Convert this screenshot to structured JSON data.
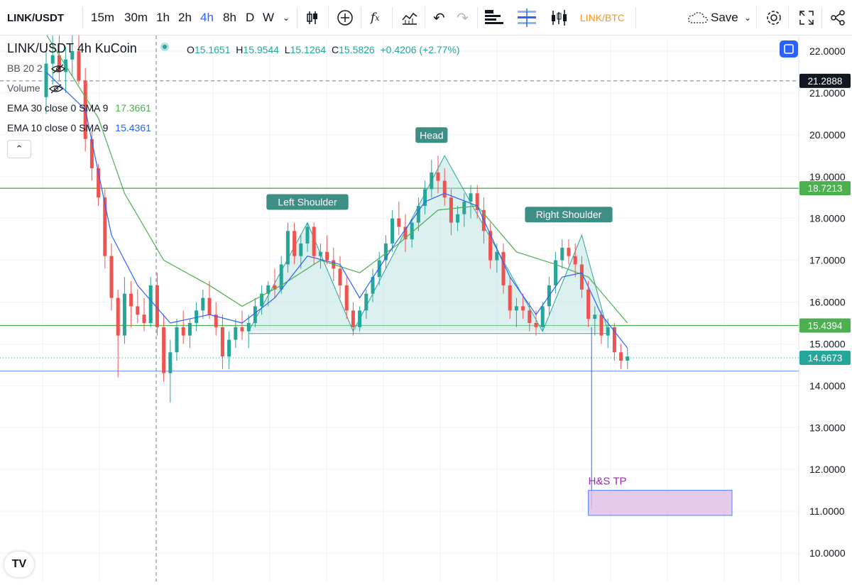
{
  "toolbar": {
    "symbol": "LINK/USDT",
    "intervals": [
      "15m",
      "30m",
      "1h",
      "2h",
      "4h",
      "8h",
      "D",
      "W"
    ],
    "active_interval": "4h",
    "compare_label": "LINK/BTC",
    "save_label": "Save",
    "icons": [
      "chevron-down-icon",
      "candles-icon",
      "plus-circle-icon",
      "indicator-fx-icon",
      "templates-icon",
      "undo-icon",
      "redo-icon",
      "object-tree-icon",
      "layout-icon",
      "bars-icon",
      "save-cloud-icon",
      "settings-icon",
      "fullscreen-icon",
      "share-icon"
    ]
  },
  "legend": {
    "title": "LINK/USDT  4h  KuCoin",
    "open_label": "O",
    "open": "15.1651",
    "high_label": "H",
    "high": "15.9544",
    "low_label": "L",
    "low": "15.1264",
    "close_label": "C",
    "close": "15.5826",
    "change": "+0.4206 (+2.77%)",
    "indicators": [
      {
        "name": "BB 20 2",
        "value": "",
        "color": "#50535e"
      },
      {
        "name": "Volume",
        "value": "",
        "color": "#50535e"
      },
      {
        "name": "EMA 30 close 0 SMA 9",
        "value": "17.3661",
        "color": "#4caf50"
      },
      {
        "name": "EMA 10 close 0 SMA 9",
        "value": "15.4361",
        "color": "#2962ff"
      }
    ]
  },
  "chart_data": {
    "type": "candlestick",
    "symbol": "LINK/USDT",
    "timeframe": "4h",
    "exchange": "KuCoin",
    "ylim": [
      10.0,
      22.0
    ],
    "y_ticks": [
      10.0,
      11.0,
      12.0,
      13.0,
      14.0,
      15.0,
      16.0,
      17.0,
      18.0,
      19.0,
      20.0,
      21.0,
      22.0
    ],
    "y_tick_labels": [
      "10.0000",
      "11.0000",
      "12.0000",
      "13.0000",
      "14.0000",
      "15.0000",
      "16.0000",
      "17.0000",
      "18.0000",
      "19.0000",
      "20.0000",
      "21.0000",
      "22.0000"
    ],
    "price_tags": [
      {
        "value": 21.2888,
        "label": "21.2888",
        "color": "#131722",
        "kind": "crosshair"
      },
      {
        "value": 18.7213,
        "label": "18.7213",
        "color": "#4caf50",
        "kind": "horizontal-line"
      },
      {
        "value": 15.4394,
        "label": "15.4394",
        "color": "#4caf50",
        "kind": "horizontal-line"
      },
      {
        "value": 14.6673,
        "label": "14.6673",
        "color": "#26a69a",
        "kind": "last-price"
      }
    ],
    "support_line": 14.35,
    "colors": {
      "up": "#26a69a",
      "down": "#ef5350",
      "ema30": "#4caf50",
      "ema10": "#2962ff",
      "neckline": "#4caf50",
      "target": "#9c27b0"
    },
    "candles": [
      [
        0,
        20.9,
        22.0,
        20.5,
        21.7
      ],
      [
        1,
        21.7,
        22.5,
        21.2,
        21.9
      ],
      [
        2,
        21.9,
        22.6,
        21.3,
        21.5
      ],
      [
        3,
        21.5,
        22.1,
        21.0,
        21.8
      ],
      [
        4,
        21.8,
        22.6,
        21.4,
        22.0
      ],
      [
        5,
        22.0,
        22.4,
        21.2,
        21.3
      ],
      [
        6,
        21.3,
        21.6,
        19.6,
        19.9
      ],
      [
        7,
        19.9,
        20.1,
        18.9,
        19.2
      ],
      [
        8,
        19.2,
        19.3,
        18.3,
        18.5
      ],
      [
        9,
        18.5,
        18.7,
        16.8,
        17.1
      ],
      [
        10,
        17.1,
        17.4,
        15.8,
        16.1
      ],
      [
        11,
        16.1,
        16.3,
        14.2,
        15.2
      ],
      [
        12,
        15.2,
        16.6,
        15.0,
        16.2
      ],
      [
        13,
        16.2,
        16.5,
        15.4,
        15.9
      ],
      [
        14,
        15.9,
        16.3,
        15.5,
        15.7
      ],
      [
        15,
        15.7,
        16.1,
        15.3,
        15.5
      ],
      [
        16,
        15.5,
        16.6,
        15.4,
        16.4
      ],
      [
        17,
        16.4,
        16.7,
        15.2,
        15.4
      ],
      [
        18,
        15.4,
        15.7,
        14.1,
        14.3
      ],
      [
        19,
        14.3,
        15.1,
        13.6,
        14.8
      ],
      [
        20,
        14.8,
        15.6,
        14.6,
        15.4
      ],
      [
        21,
        15.4,
        15.8,
        15.0,
        15.2
      ],
      [
        22,
        15.2,
        15.6,
        14.9,
        15.5
      ],
      [
        23,
        15.5,
        16.0,
        15.3,
        15.8
      ],
      [
        24,
        15.8,
        16.3,
        15.6,
        16.1
      ],
      [
        25,
        16.1,
        16.5,
        15.6,
        15.7
      ],
      [
        26,
        15.7,
        16.0,
        15.2,
        15.4
      ],
      [
        27,
        15.4,
        15.7,
        14.4,
        14.7
      ],
      [
        28,
        14.7,
        15.3,
        14.4,
        15.1
      ],
      [
        29,
        15.1,
        15.6,
        14.9,
        15.4
      ],
      [
        30,
        15.4,
        15.8,
        15.1,
        15.3
      ],
      [
        31,
        15.3,
        15.7,
        14.9,
        15.5
      ],
      [
        32,
        15.5,
        16.1,
        15.4,
        15.9
      ],
      [
        33,
        15.9,
        16.4,
        15.7,
        16.2
      ],
      [
        34,
        16.2,
        16.5,
        15.9,
        16.4
      ],
      [
        35,
        16.4,
        16.8,
        16.1,
        16.3
      ],
      [
        36,
        16.3,
        17.1,
        16.2,
        16.9
      ],
      [
        37,
        16.9,
        17.9,
        16.7,
        17.7
      ],
      [
        38,
        17.7,
        17.9,
        16.9,
        17.1
      ],
      [
        39,
        17.1,
        17.6,
        16.8,
        17.4
      ],
      [
        40,
        17.4,
        17.9,
        17.2,
        17.8
      ],
      [
        41,
        17.8,
        17.9,
        16.9,
        17.1
      ],
      [
        42,
        17.1,
        17.4,
        16.8,
        17.2
      ],
      [
        43,
        17.2,
        17.6,
        16.9,
        17.0
      ],
      [
        44,
        17.0,
        17.3,
        16.5,
        16.8
      ],
      [
        45,
        16.8,
        17.1,
        16.1,
        16.4
      ],
      [
        46,
        16.4,
        16.6,
        15.6,
        15.8
      ],
      [
        47,
        15.8,
        16.0,
        15.2,
        15.4
      ],
      [
        48,
        15.4,
        15.9,
        15.3,
        15.8
      ],
      [
        49,
        15.8,
        16.3,
        15.6,
        16.2
      ],
      [
        50,
        16.2,
        16.8,
        16.0,
        16.6
      ],
      [
        51,
        16.6,
        17.2,
        16.4,
        17.0
      ],
      [
        52,
        17.0,
        17.6,
        16.8,
        17.4
      ],
      [
        53,
        17.4,
        18.2,
        17.2,
        18.0
      ],
      [
        54,
        18.0,
        18.4,
        17.6,
        17.8
      ],
      [
        55,
        17.8,
        18.1,
        17.2,
        17.5
      ],
      [
        56,
        17.5,
        18.0,
        17.3,
        17.9
      ],
      [
        57,
        17.9,
        18.5,
        17.7,
        18.3
      ],
      [
        58,
        18.3,
        18.9,
        18.1,
        18.7
      ],
      [
        59,
        18.7,
        19.4,
        18.5,
        19.1
      ],
      [
        60,
        19.1,
        19.5,
        18.6,
        18.9
      ],
      [
        61,
        18.9,
        19.2,
        18.3,
        18.5
      ],
      [
        62,
        18.5,
        18.7,
        17.6,
        17.9
      ],
      [
        63,
        17.9,
        18.3,
        17.7,
        18.1
      ],
      [
        64,
        18.1,
        18.6,
        17.8,
        18.4
      ],
      [
        65,
        18.4,
        18.8,
        18.0,
        18.6
      ],
      [
        66,
        18.6,
        18.8,
        18.0,
        18.2
      ],
      [
        67,
        18.2,
        18.5,
        17.4,
        17.7
      ],
      [
        68,
        17.7,
        17.9,
        16.8,
        17.0
      ],
      [
        69,
        17.0,
        17.4,
        16.7,
        17.2
      ],
      [
        70,
        17.2,
        17.4,
        16.2,
        16.4
      ],
      [
        71,
        16.4,
        16.6,
        15.6,
        15.8
      ],
      [
        72,
        15.8,
        16.1,
        15.4,
        15.9
      ],
      [
        73,
        15.9,
        16.2,
        15.6,
        15.8
      ],
      [
        74,
        15.8,
        16.0,
        15.3,
        15.5
      ],
      [
        75,
        15.5,
        15.8,
        15.2,
        15.4
      ],
      [
        76,
        15.4,
        16.0,
        15.3,
        15.9
      ],
      [
        77,
        15.9,
        16.6,
        15.7,
        16.4
      ],
      [
        78,
        16.4,
        17.2,
        16.2,
        17.0
      ],
      [
        79,
        17.0,
        17.5,
        16.8,
        17.3
      ],
      [
        80,
        17.3,
        17.5,
        16.9,
        17.1
      ],
      [
        81,
        17.1,
        17.4,
        16.6,
        16.9
      ],
      [
        82,
        16.9,
        17.1,
        16.1,
        16.3
      ],
      [
        83,
        16.3,
        16.5,
        15.4,
        15.6
      ],
      [
        84,
        15.6,
        15.9,
        15.2,
        15.7
      ],
      [
        85,
        15.7,
        15.8,
        15.0,
        15.2
      ],
      [
        86,
        15.2,
        15.6,
        14.9,
        15.4
      ],
      [
        87,
        15.4,
        15.5,
        14.6,
        14.8
      ],
      [
        88,
        14.8,
        15.0,
        14.4,
        14.6
      ],
      [
        89,
        14.6,
        14.9,
        14.4,
        14.7
      ]
    ],
    "ema10": [
      [
        0,
        21.5
      ],
      [
        6,
        20.6
      ],
      [
        10,
        17.6
      ],
      [
        14,
        16.4
      ],
      [
        19,
        15.5
      ],
      [
        25,
        15.7
      ],
      [
        30,
        15.5
      ],
      [
        35,
        16.1
      ],
      [
        40,
        17.1
      ],
      [
        45,
        16.9
      ],
      [
        48,
        16.1
      ],
      [
        53,
        17.3
      ],
      [
        58,
        18.4
      ],
      [
        61,
        18.6
      ],
      [
        66,
        18.3
      ],
      [
        71,
        16.6
      ],
      [
        75,
        15.7
      ],
      [
        79,
        16.6
      ],
      [
        82,
        16.7
      ],
      [
        85,
        15.7
      ],
      [
        89,
        14.9
      ]
    ],
    "ema30": [
      [
        0,
        22.4
      ],
      [
        8,
        20.4
      ],
      [
        12,
        18.6
      ],
      [
        18,
        17.0
      ],
      [
        25,
        16.4
      ],
      [
        30,
        15.9
      ],
      [
        36,
        16.4
      ],
      [
        42,
        17.0
      ],
      [
        48,
        16.7
      ],
      [
        54,
        17.4
      ],
      [
        60,
        18.2
      ],
      [
        66,
        18.3
      ],
      [
        72,
        17.2
      ],
      [
        78,
        16.9
      ],
      [
        83,
        16.6
      ],
      [
        89,
        15.5
      ]
    ],
    "pattern": {
      "name": "Head and Shoulders",
      "neckline": 15.4394,
      "points": [
        [
          31,
          15.3
        ],
        [
          40,
          17.9
        ],
        [
          47,
          15.3
        ],
        [
          61,
          19.5
        ],
        [
          76,
          15.3
        ],
        [
          82,
          17.6
        ],
        [
          86,
          15.3
        ]
      ],
      "labels": [
        {
          "text": "Left Shoulder",
          "x": 40,
          "y": 17.9
        },
        {
          "text": "Head",
          "x": 59,
          "y": 19.5
        },
        {
          "text": "Right Shoulder",
          "x": 80,
          "y": 17.6
        }
      ],
      "target_label": "H&S TP",
      "target_range": [
        10.9,
        11.5
      ],
      "target_x": [
        83,
        105
      ]
    }
  }
}
